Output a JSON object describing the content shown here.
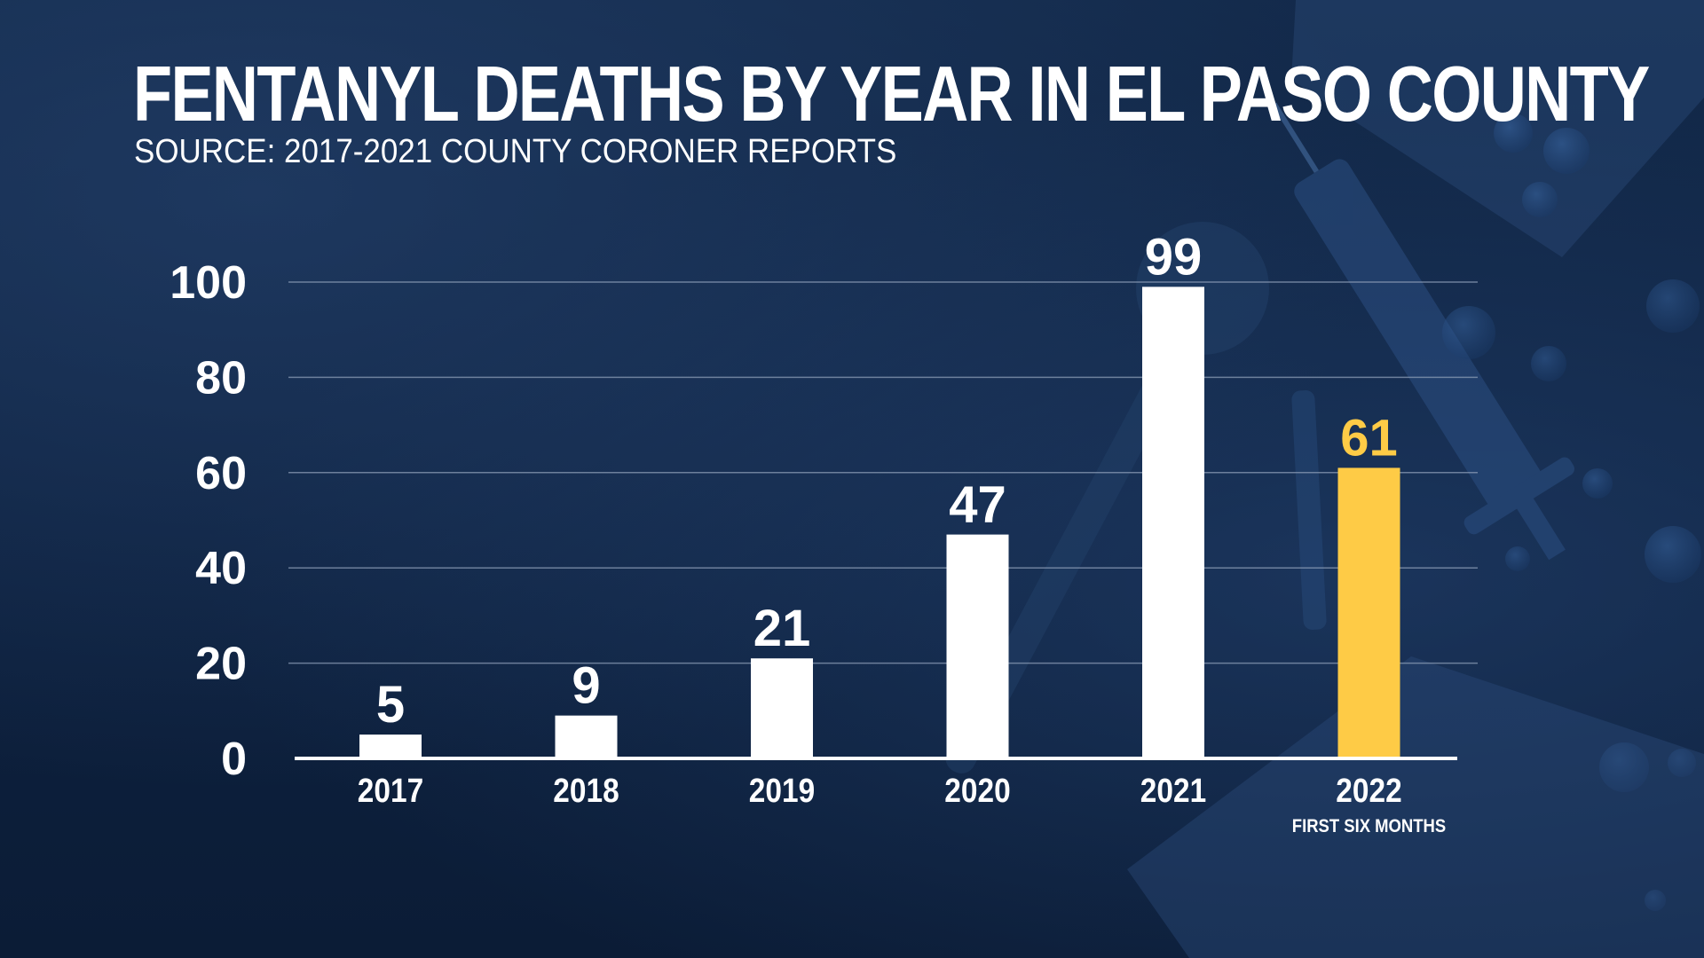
{
  "title": "FENTANYL DEATHS BY YEAR IN EL PASO COUNTY",
  "subtitle": "SOURCE: 2017-2021 COUNTY CORONER REPORTS",
  "colors": {
    "background": "#0f2340",
    "bar": "#ffffff",
    "highlight_bar": "#fecb46",
    "text": "#ffffff",
    "gridline": "#8a9bb5"
  },
  "chart_data": {
    "type": "bar",
    "categories": [
      "2017",
      "2018",
      "2019",
      "2020",
      "2021",
      "2022"
    ],
    "category_sublabels": [
      "",
      "",
      "",
      "",
      "",
      "FIRST SIX MONTHS"
    ],
    "values": [
      5,
      9,
      21,
      47,
      99,
      61
    ],
    "data_labels": [
      "5",
      "9",
      "21",
      "47",
      "99",
      "61"
    ],
    "highlight_index": 5,
    "ylim": [
      0,
      100
    ],
    "yticks": [
      0,
      20,
      40,
      60,
      80,
      100
    ],
    "grid": true,
    "legend": "none"
  }
}
